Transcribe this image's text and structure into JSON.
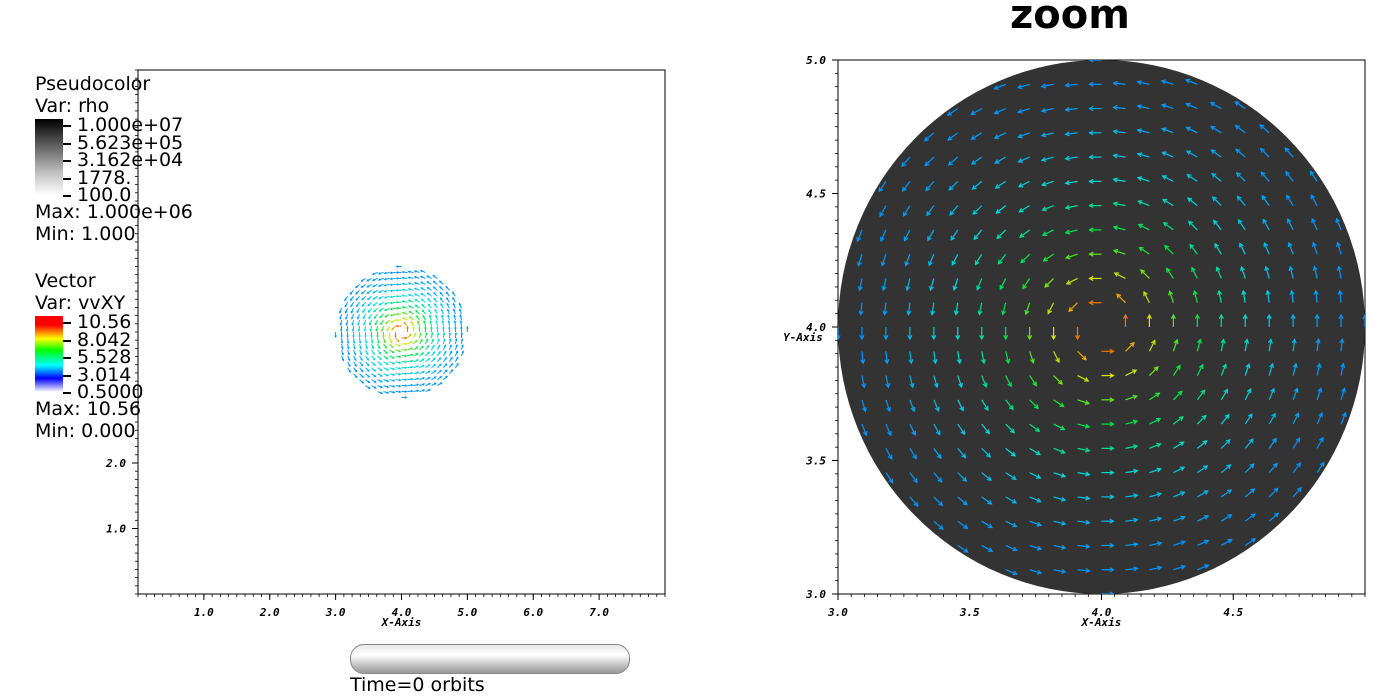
{
  "chart_data": [
    {
      "type": "scatter",
      "title": "",
      "xlabel": "X-Axis",
      "ylabel": "",
      "xlim": [
        0,
        8
      ],
      "ylim": [
        0,
        8
      ],
      "x_ticks": [
        "1.0",
        "2.0",
        "3.0",
        "4.0",
        "5.0",
        "6.0",
        "7.0"
      ],
      "y_ticks": [
        "1.0",
        "2.0"
      ],
      "disk": {
        "center": [
          4.0,
          4.0
        ],
        "radius": 1.0
      }
    },
    {
      "type": "scatter",
      "title": "zoom",
      "xlabel": "X-Axis",
      "ylabel": "Y-Axis",
      "xlim": [
        3.0,
        5.0
      ],
      "ylim": [
        3.0,
        5.0
      ],
      "x_ticks": [
        "3.0",
        "3.5",
        "4.0",
        "4.5"
      ],
      "y_ticks": [
        "3.0",
        "3.5",
        "4.0",
        "4.5",
        "5.0"
      ],
      "disk": {
        "center": [
          4.0,
          4.0
        ],
        "radius": 1.0
      }
    }
  ],
  "legends": {
    "pseudocolor": {
      "title": "Pseudocolor",
      "var": "Var: rho",
      "ticks": [
        "1.000e+07",
        "5.623e+05",
        "3.162e+04",
        "1778.",
        "100.0"
      ],
      "max": "Max:  1.000e+06",
      "min": "Min:  1.000"
    },
    "vector": {
      "title": "Vector",
      "var": "Var: vvXY",
      "ticks": [
        "10.56",
        "8.042",
        "5.528",
        "3.014",
        "0.5000"
      ],
      "max": "Max:  10.56",
      "min": "Min:  0.000"
    }
  },
  "time_label": "Time=0 orbits",
  "colors": {
    "disk_fill": "#333333",
    "background": "#ffffff"
  }
}
